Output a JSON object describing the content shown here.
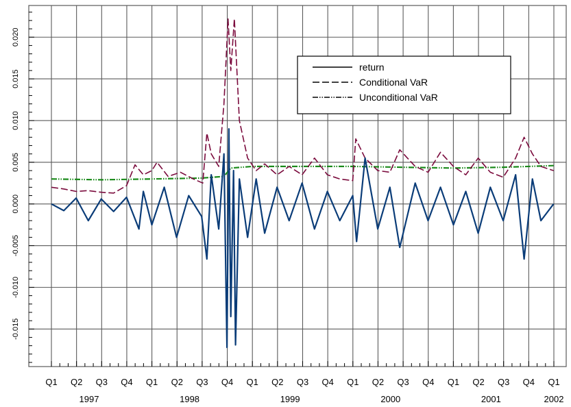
{
  "chart_data": {
    "type": "line",
    "title": "",
    "xlabel": "",
    "ylabel": "",
    "xlim": [
      "1997-01-01",
      "2002-01-01"
    ],
    "ylim": [
      -0.0195,
      0.0238
    ],
    "grid": true,
    "legend_position": "top-right",
    "quarter_ticks": [
      "Q1",
      "Q2",
      "Q3",
      "Q4",
      "Q1",
      "Q2",
      "Q3",
      "Q4",
      "Q1",
      "Q2",
      "Q3",
      "Q4",
      "Q1",
      "Q2",
      "Q3",
      "Q4",
      "Q1",
      "Q2",
      "Q3",
      "Q4",
      "Q1"
    ],
    "year_ticks": [
      "1997",
      "1998",
      "1999",
      "2000",
      "2001",
      "2002"
    ],
    "y_ticks": [
      "-0.015",
      "-0.010",
      "-0.005",
      "0.000",
      "0.005",
      "0.010",
      "0.015",
      "0.020"
    ],
    "y_tick_values": [
      -0.015,
      -0.01,
      -0.005,
      0.0,
      0.005,
      0.01,
      0.015,
      0.02
    ],
    "series": [
      {
        "name": "return",
        "color": "#0a3c78",
        "dash": "solid",
        "points": [
          [
            "1997-01-01",
            0.0
          ],
          [
            "1997-02-15",
            -0.0008
          ],
          [
            "1997-04-01",
            0.0007
          ],
          [
            "1997-05-15",
            -0.002
          ],
          [
            "1997-07-01",
            0.0006
          ],
          [
            "1997-08-15",
            -0.0009
          ],
          [
            "1997-10-01",
            0.0008
          ],
          [
            "1997-11-15",
            -0.003
          ],
          [
            "1997-12-01",
            0.0015
          ],
          [
            "1998-01-01",
            -0.0025
          ],
          [
            "1998-02-15",
            0.002
          ],
          [
            "1998-04-01",
            -0.004
          ],
          [
            "1998-05-15",
            0.001
          ],
          [
            "1998-07-01",
            -0.0015
          ],
          [
            "1998-07-20",
            -0.0066
          ],
          [
            "1998-08-05",
            0.0035
          ],
          [
            "1998-09-01",
            -0.003
          ],
          [
            "1998-09-20",
            0.006
          ],
          [
            "1998-10-01",
            -0.0172
          ],
          [
            "1998-10-08",
            0.009
          ],
          [
            "1998-10-15",
            -0.0135
          ],
          [
            "1998-10-25",
            0.004
          ],
          [
            "1998-11-01",
            -0.0169
          ],
          [
            "1998-11-15",
            0.003
          ],
          [
            "1998-12-15",
            -0.004
          ],
          [
            "1999-01-15",
            0.003
          ],
          [
            "1999-02-15",
            -0.0035
          ],
          [
            "1999-04-01",
            0.002
          ],
          [
            "1999-05-15",
            -0.002
          ],
          [
            "1999-07-01",
            0.0025
          ],
          [
            "1999-08-15",
            -0.003
          ],
          [
            "1999-10-01",
            0.0015
          ],
          [
            "1999-11-15",
            -0.002
          ],
          [
            "2000-01-01",
            0.001
          ],
          [
            "2000-01-15",
            -0.0045
          ],
          [
            "2000-02-15",
            0.0055
          ],
          [
            "2000-04-01",
            -0.003
          ],
          [
            "2000-05-15",
            0.002
          ],
          [
            "2000-06-20",
            -0.0052
          ],
          [
            "2000-08-15",
            0.0025
          ],
          [
            "2000-10-01",
            -0.002
          ],
          [
            "2000-11-15",
            0.002
          ],
          [
            "2001-01-01",
            -0.0025
          ],
          [
            "2001-02-15",
            0.0015
          ],
          [
            "2001-04-01",
            -0.0035
          ],
          [
            "2001-05-15",
            0.002
          ],
          [
            "2001-07-01",
            -0.002
          ],
          [
            "2001-08-15",
            0.0035
          ],
          [
            "2001-09-15",
            -0.0066
          ],
          [
            "2001-10-15",
            0.003
          ],
          [
            "2001-11-15",
            -0.002
          ],
          [
            "2001-12-31",
            0.0
          ]
        ]
      },
      {
        "name": "Conditional VaR",
        "color": "#7a0a3c",
        "dash": "dashed",
        "points": [
          [
            "1997-01-01",
            0.002
          ],
          [
            "1997-02-15",
            0.0018
          ],
          [
            "1997-04-01",
            0.0015
          ],
          [
            "1997-05-15",
            0.0016
          ],
          [
            "1997-07-01",
            0.0014
          ],
          [
            "1997-08-15",
            0.0013
          ],
          [
            "1997-10-01",
            0.0022
          ],
          [
            "1997-11-01",
            0.0047
          ],
          [
            "1997-12-01",
            0.0035
          ],
          [
            "1998-01-01",
            0.004
          ],
          [
            "1998-01-20",
            0.005
          ],
          [
            "1998-03-01",
            0.0033
          ],
          [
            "1998-04-15",
            0.0038
          ],
          [
            "1998-06-01",
            0.003
          ],
          [
            "1998-07-05",
            0.0025
          ],
          [
            "1998-07-20",
            0.0085
          ],
          [
            "1998-08-05",
            0.006
          ],
          [
            "1998-09-01",
            0.0045
          ],
          [
            "1998-09-20",
            0.012
          ],
          [
            "1998-10-05",
            0.0222
          ],
          [
            "1998-10-15",
            0.016
          ],
          [
            "1998-10-28",
            0.0222
          ],
          [
            "1998-11-15",
            0.01
          ],
          [
            "1998-12-15",
            0.0055
          ],
          [
            "1999-01-15",
            0.004
          ],
          [
            "1999-02-15",
            0.0048
          ],
          [
            "1999-04-01",
            0.0035
          ],
          [
            "1999-05-15",
            0.0045
          ],
          [
            "1999-07-01",
            0.0035
          ],
          [
            "1999-08-15",
            0.0055
          ],
          [
            "1999-10-01",
            0.0035
          ],
          [
            "1999-11-15",
            0.003
          ],
          [
            "2000-01-01",
            0.0028
          ],
          [
            "2000-01-12",
            0.0078
          ],
          [
            "2000-02-15",
            0.0055
          ],
          [
            "2000-04-01",
            0.004
          ],
          [
            "2000-05-15",
            0.0038
          ],
          [
            "2000-06-20",
            0.0065
          ],
          [
            "2000-08-15",
            0.0045
          ],
          [
            "2000-10-01",
            0.0038
          ],
          [
            "2000-11-15",
            0.0062
          ],
          [
            "2001-01-01",
            0.0045
          ],
          [
            "2001-02-15",
            0.0035
          ],
          [
            "2001-04-01",
            0.0055
          ],
          [
            "2001-05-15",
            0.0038
          ],
          [
            "2001-07-01",
            0.0032
          ],
          [
            "2001-08-15",
            0.0055
          ],
          [
            "2001-09-15",
            0.008
          ],
          [
            "2001-10-15",
            0.006
          ],
          [
            "2001-11-15",
            0.0045
          ],
          [
            "2001-12-31",
            0.004
          ]
        ]
      },
      {
        "name": "Unconditional VaR",
        "color": "#1a8a1a",
        "dash": "dashdotdot",
        "points": [
          [
            "1997-01-01",
            0.003
          ],
          [
            "1997-07-01",
            0.0029
          ],
          [
            "1998-01-01",
            0.003
          ],
          [
            "1998-07-01",
            0.0031
          ],
          [
            "1998-09-20",
            0.0033
          ],
          [
            "1998-10-15",
            0.0043
          ],
          [
            "1999-01-01",
            0.0045
          ],
          [
            "1999-07-01",
            0.0045
          ],
          [
            "2000-01-01",
            0.0045
          ],
          [
            "2000-07-01",
            0.0044
          ],
          [
            "2001-01-01",
            0.0043
          ],
          [
            "2001-07-01",
            0.0044
          ],
          [
            "2001-12-31",
            0.0046
          ]
        ]
      }
    ]
  }
}
